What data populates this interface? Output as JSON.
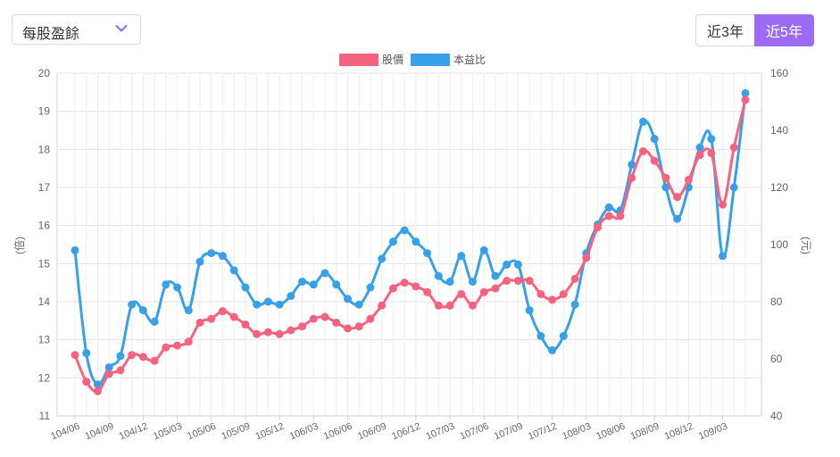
{
  "selector": {
    "value": "每股盈餘"
  },
  "range_buttons": [
    {
      "label": "近3年",
      "active": false
    },
    {
      "label": "近5年",
      "active": true
    }
  ],
  "colors": {
    "price": "#f7627f",
    "pe": "#38a0e8",
    "accent": "#9b6cf2",
    "grid": "#e3e3e3"
  },
  "chart_data": {
    "type": "line",
    "legend": [
      {
        "name": "股價",
        "color": "#f7627f"
      },
      {
        "name": "本益比",
        "color": "#38a0e8"
      }
    ],
    "y_left": {
      "label": "(倍)",
      "min": 11,
      "max": 20,
      "ticks": [
        11,
        12,
        13,
        14,
        15,
        16,
        17,
        18,
        19,
        20
      ]
    },
    "y_right": {
      "label": "(元)",
      "min": 40,
      "max": 160,
      "ticks": [
        40,
        60,
        80,
        100,
        120,
        140,
        160
      ]
    },
    "x_tick_labels": [
      "104/06",
      "104/09",
      "104/12",
      "105/03",
      "105/06",
      "105/09",
      "105/12",
      "106/03",
      "106/06",
      "106/09",
      "106/12",
      "107/03",
      "107/06",
      "107/09",
      "107/12",
      "108/03",
      "108/06",
      "108/09",
      "108/12",
      "109/03"
    ],
    "series": [
      {
        "name": "股價",
        "axis": "left",
        "values": [
          12.6,
          11.9,
          11.65,
          12.1,
          12.2,
          12.6,
          12.55,
          12.45,
          12.8,
          12.85,
          12.95,
          13.45,
          13.55,
          13.75,
          13.6,
          13.4,
          13.15,
          13.2,
          13.15,
          13.25,
          13.35,
          13.55,
          13.6,
          13.45,
          13.3,
          13.35,
          13.55,
          13.9,
          14.35,
          14.5,
          14.4,
          14.25,
          13.9,
          13.9,
          14.2,
          13.9,
          14.25,
          14.35,
          14.55,
          14.55,
          14.55,
          14.2,
          14.05,
          14.2,
          14.6,
          15.15,
          15.95,
          16.25,
          16.25,
          17.25,
          17.95,
          17.7,
          17.25,
          16.75,
          17.2,
          17.85,
          17.9,
          16.55,
          18.05,
          19.3
        ]
      },
      {
        "name": "本益比",
        "axis": "right",
        "values": [
          98,
          62,
          51,
          57,
          61,
          79,
          77,
          73,
          86,
          85,
          77,
          94,
          97,
          96,
          91,
          85,
          79,
          80,
          79,
          82,
          87,
          86,
          90,
          86,
          81,
          79,
          85,
          95,
          101,
          105,
          101,
          97,
          89,
          87,
          96,
          87,
          98,
          89,
          93,
          93,
          77,
          68,
          63,
          68,
          79,
          97,
          107,
          113,
          112,
          128,
          143,
          137,
          120,
          109,
          120,
          134,
          137,
          96,
          120,
          153
        ]
      }
    ]
  }
}
